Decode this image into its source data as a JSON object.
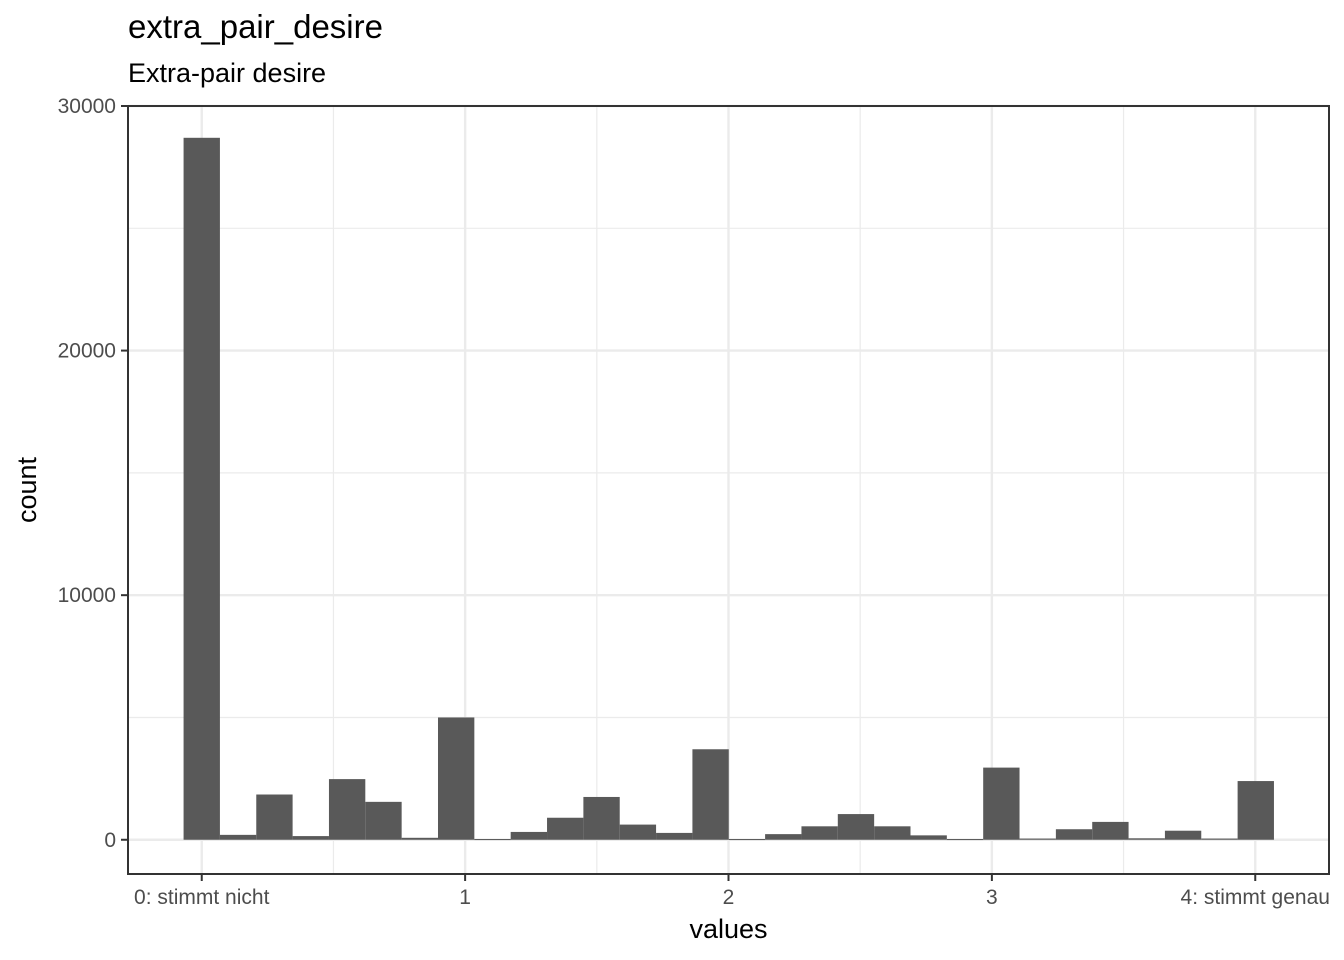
{
  "chart_data": {
    "type": "bar",
    "title": "extra_pair_desire",
    "subtitle": "Extra-pair desire",
    "xlabel": "values",
    "ylabel": "count",
    "xlim": [
      -0.28,
      4.28
    ],
    "ylim": [
      -1400,
      30000
    ],
    "x_ticks": [
      {
        "value": 0,
        "label": "0: stimmt nicht"
      },
      {
        "value": 1,
        "label": "1"
      },
      {
        "value": 2,
        "label": "2"
      },
      {
        "value": 3,
        "label": "3"
      },
      {
        "value": 4,
        "label": "4: stimmt genau"
      }
    ],
    "y_ticks": [
      {
        "value": 0,
        "label": "0"
      },
      {
        "value": 10000,
        "label": "10000"
      },
      {
        "value": 20000,
        "label": "20000"
      },
      {
        "value": 30000,
        "label": "30000"
      }
    ],
    "x_minor_grid": [
      0.5,
      1.5,
      2.5,
      3.5
    ],
    "y_minor_grid": [
      5000,
      15000,
      25000
    ],
    "bin_width": 0.138,
    "bins": [
      {
        "x": 0.0,
        "count": 28700
      },
      {
        "x": 0.138,
        "count": 200
      },
      {
        "x": 0.276,
        "count": 1850
      },
      {
        "x": 0.414,
        "count": 150
      },
      {
        "x": 0.552,
        "count": 2480
      },
      {
        "x": 0.69,
        "count": 1550
      },
      {
        "x": 0.828,
        "count": 80
      },
      {
        "x": 0.966,
        "count": 5000
      },
      {
        "x": 1.104,
        "count": 30
      },
      {
        "x": 1.242,
        "count": 320
      },
      {
        "x": 1.38,
        "count": 900
      },
      {
        "x": 1.518,
        "count": 1750
      },
      {
        "x": 1.656,
        "count": 620
      },
      {
        "x": 1.794,
        "count": 280
      },
      {
        "x": 1.932,
        "count": 3700
      },
      {
        "x": 2.07,
        "count": 30
      },
      {
        "x": 2.208,
        "count": 230
      },
      {
        "x": 2.346,
        "count": 550
      },
      {
        "x": 2.484,
        "count": 1050
      },
      {
        "x": 2.622,
        "count": 550
      },
      {
        "x": 2.76,
        "count": 180
      },
      {
        "x": 2.898,
        "count": 30
      },
      {
        "x": 3.036,
        "count": 2950
      },
      {
        "x": 3.174,
        "count": 50
      },
      {
        "x": 3.312,
        "count": 430
      },
      {
        "x": 3.45,
        "count": 730
      },
      {
        "x": 3.588,
        "count": 60
      },
      {
        "x": 3.726,
        "count": 370
      },
      {
        "x": 3.864,
        "count": 50
      },
      {
        "x": 4.002,
        "count": 2400
      }
    ],
    "grid": true,
    "bar_color": "#595959",
    "grid_color": "#ebebeb"
  }
}
